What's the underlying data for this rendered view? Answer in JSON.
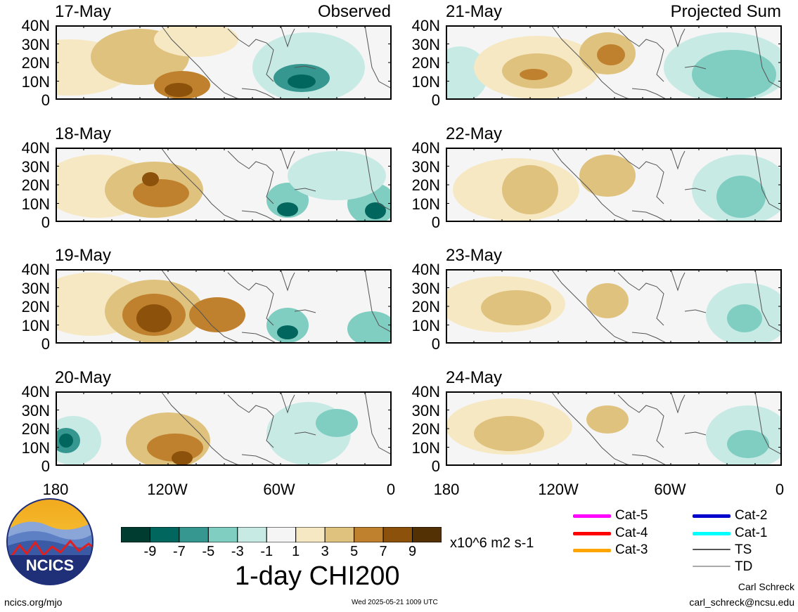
{
  "panels": {
    "observed": [
      {
        "date": "17-May",
        "header": "Observed"
      },
      {
        "date": "18-May",
        "header": ""
      },
      {
        "date": "19-May",
        "header": ""
      },
      {
        "date": "20-May",
        "header": ""
      }
    ],
    "projected": [
      {
        "date": "21-May",
        "header": "Projected Sum"
      },
      {
        "date": "22-May",
        "header": ""
      },
      {
        "date": "23-May",
        "header": ""
      },
      {
        "date": "24-May",
        "header": ""
      }
    ]
  },
  "y_ticks": [
    "40N",
    "30N",
    "20N",
    "10N",
    "0"
  ],
  "x_ticks": [
    "180",
    "120W",
    "60W",
    "0"
  ],
  "colorbar": {
    "colors": [
      "#003c30",
      "#01665e",
      "#35978f",
      "#80cdc1",
      "#c7eae5",
      "#f5f5f5",
      "#f6e8c3",
      "#dfc27d",
      "#bf812d",
      "#8c510a",
      "#543005"
    ],
    "labels": [
      "-9",
      "-7",
      "-5",
      "-3",
      "-1",
      "1",
      "3",
      "5",
      "7",
      "9"
    ],
    "units": "x10^6 m2 s-1",
    "title": "1-day CHI200"
  },
  "storm_legend": [
    {
      "label": "Cat-5",
      "color": "#ff00ff"
    },
    {
      "label": "Cat-4",
      "color": "#ff0000"
    },
    {
      "label": "Cat-3",
      "color": "#ffa500"
    },
    {
      "label": "Cat-2",
      "color": "#0000cd"
    },
    {
      "label": "Cat-1",
      "color": "#00ffff"
    },
    {
      "label": "TS",
      "color": "#555555"
    },
    {
      "label": "TD",
      "color": "#aaaaaa"
    }
  ],
  "logo_text": "NCICS",
  "footer": {
    "site": "ncics.org/mjo",
    "timestamp": "Wed 2025-05-21 1009 UTC",
    "author": "Carl Schreck",
    "email": "carl_schreck@ncsu.edu"
  }
}
